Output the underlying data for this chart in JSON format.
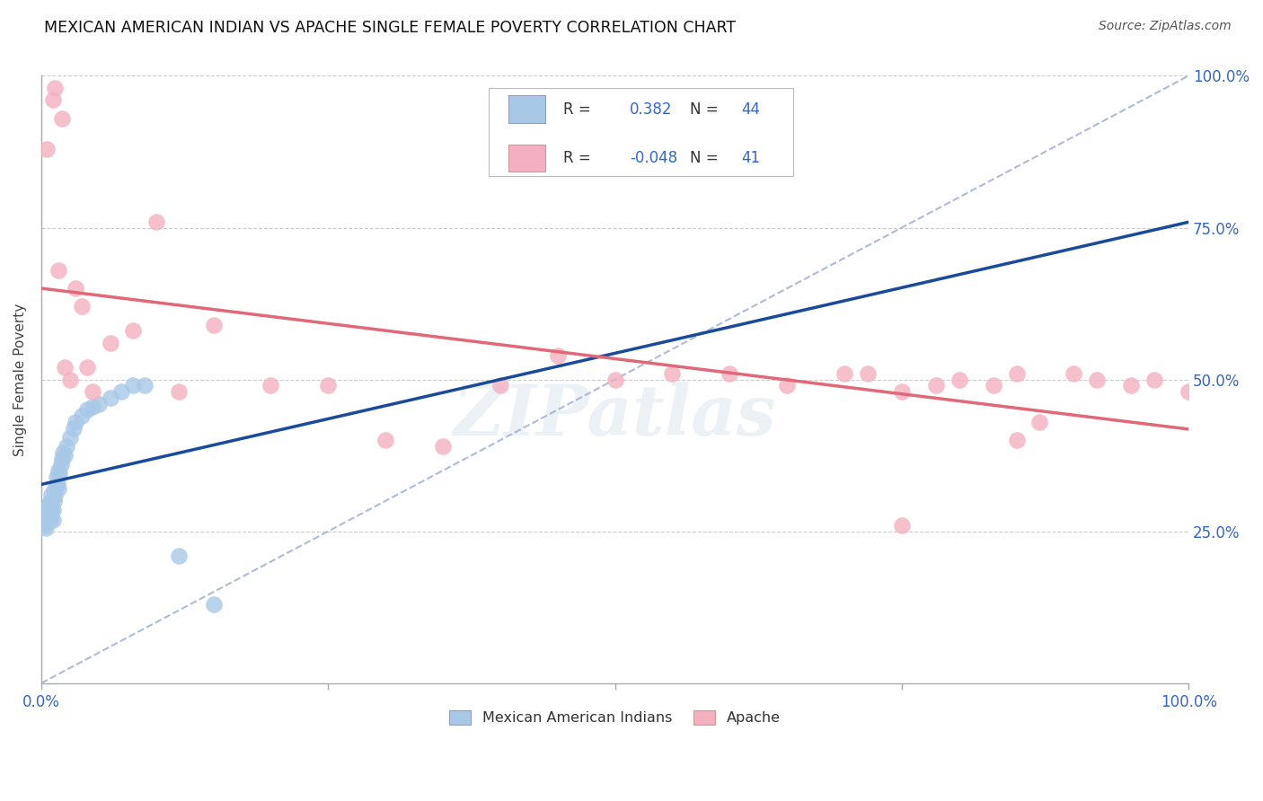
{
  "title": "MEXICAN AMERICAN INDIAN VS APACHE SINGLE FEMALE POVERTY CORRELATION CHART",
  "source": "Source: ZipAtlas.com",
  "ylabel": "Single Female Poverty",
  "R_blue": 0.382,
  "N_blue": 44,
  "R_pink": -0.048,
  "N_pink": 41,
  "blue_color": "#a8c8e8",
  "pink_color": "#f4b0c0",
  "blue_line_color": "#1a4a9a",
  "pink_line_color": "#e06878",
  "dashed_line_color": "#99aacc",
  "blue_x": [
    0.002,
    0.003,
    0.004,
    0.004,
    0.005,
    0.005,
    0.006,
    0.006,
    0.007,
    0.007,
    0.008,
    0.008,
    0.009,
    0.009,
    0.01,
    0.01,
    0.01,
    0.011,
    0.011,
    0.012,
    0.013,
    0.013,
    0.014,
    0.015,
    0.015,
    0.016,
    0.017,
    0.018,
    0.019,
    0.02,
    0.022,
    0.025,
    0.028,
    0.03,
    0.035,
    0.04,
    0.045,
    0.05,
    0.06,
    0.07,
    0.08,
    0.09,
    0.12,
    0.15
  ],
  "blue_y": [
    0.27,
    0.26,
    0.255,
    0.275,
    0.265,
    0.28,
    0.268,
    0.29,
    0.272,
    0.295,
    0.27,
    0.3,
    0.285,
    0.31,
    0.268,
    0.285,
    0.305,
    0.3,
    0.318,
    0.308,
    0.325,
    0.34,
    0.33,
    0.32,
    0.35,
    0.345,
    0.36,
    0.37,
    0.38,
    0.375,
    0.39,
    0.405,
    0.42,
    0.43,
    0.44,
    0.45,
    0.455,
    0.46,
    0.47,
    0.48,
    0.49,
    0.49,
    0.21,
    0.13
  ],
  "pink_x": [
    0.005,
    0.01,
    0.012,
    0.015,
    0.018,
    0.02,
    0.025,
    0.03,
    0.035,
    0.04,
    0.045,
    0.06,
    0.08,
    0.1,
    0.12,
    0.15,
    0.2,
    0.25,
    0.3,
    0.35,
    0.4,
    0.45,
    0.5,
    0.55,
    0.6,
    0.65,
    0.7,
    0.72,
    0.75,
    0.78,
    0.8,
    0.83,
    0.85,
    0.87,
    0.9,
    0.92,
    0.95,
    0.97,
    1.0,
    0.75,
    0.85
  ],
  "pink_y": [
    0.88,
    0.96,
    0.98,
    0.68,
    0.93,
    0.52,
    0.5,
    0.65,
    0.62,
    0.52,
    0.48,
    0.56,
    0.58,
    0.76,
    0.48,
    0.59,
    0.49,
    0.49,
    0.4,
    0.39,
    0.49,
    0.54,
    0.5,
    0.51,
    0.51,
    0.49,
    0.51,
    0.51,
    0.48,
    0.49,
    0.5,
    0.49,
    0.51,
    0.43,
    0.51,
    0.5,
    0.49,
    0.5,
    0.48,
    0.26,
    0.4
  ]
}
